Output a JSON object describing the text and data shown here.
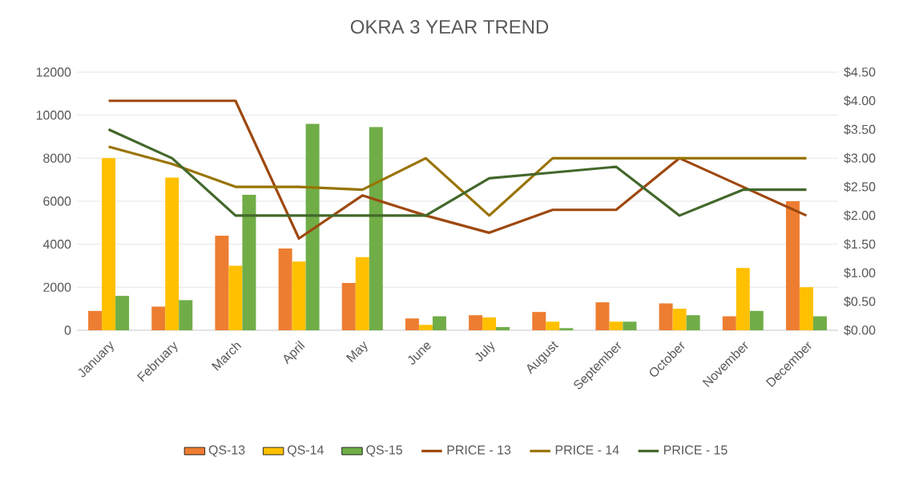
{
  "chart_data": {
    "type": "bar",
    "title": "OKRA 3 YEAR TREND",
    "categories": [
      "January",
      "February",
      "March",
      "April",
      "May",
      "June",
      "July",
      "August",
      "September",
      "October",
      "November",
      "December"
    ],
    "series": [
      {
        "name": "QS-13",
        "color": "#ed7d31",
        "values": [
          900,
          1100,
          4400,
          3800,
          2200,
          550,
          700,
          850,
          1300,
          1250,
          650,
          6000
        ]
      },
      {
        "name": "QS-14",
        "color": "#ffc000",
        "values": [
          8000,
          7100,
          3000,
          3200,
          3400,
          250,
          600,
          400,
          400,
          1000,
          2900,
          2000
        ]
      },
      {
        "name": "QS-15",
        "color": "#70ad47",
        "values": [
          1600,
          1400,
          6300,
          9600,
          9450,
          650,
          150,
          100,
          400,
          700,
          900,
          650
        ]
      },
      {
        "name": "PRICE - 13",
        "type": "line",
        "axis": "y2",
        "color": "#9e480e",
        "values": [
          4.0,
          4.0,
          4.0,
          1.6,
          2.35,
          2.0,
          1.7,
          2.1,
          2.1,
          3.0,
          2.5,
          2.0
        ]
      },
      {
        "name": "PRICE - 14",
        "type": "line",
        "axis": "y2",
        "color": "#997300",
        "values": [
          3.2,
          2.9,
          2.5,
          2.5,
          2.45,
          3.0,
          2.0,
          3.0,
          3.0,
          3.0,
          3.0,
          3.0
        ]
      },
      {
        "name": "PRICE - 15",
        "type": "line",
        "axis": "y2",
        "color": "#43682b",
        "values": [
          3.5,
          3.0,
          2.0,
          2.0,
          2.0,
          2.0,
          2.65,
          2.75,
          2.85,
          2.0,
          2.45,
          2.45
        ]
      }
    ],
    "ylim": [
      0,
      12000
    ],
    "yticks": [
      0,
      2000,
      4000,
      6000,
      8000,
      10000,
      12000
    ],
    "y2lim": [
      0,
      4.5
    ],
    "y2ticks": [
      {
        "value": 0,
        "label": "$0.00"
      },
      {
        "value": 0.5,
        "label": "$0.50"
      },
      {
        "value": 1,
        "label": "$1.00"
      },
      {
        "value": 1.5,
        "label": "$1.50"
      },
      {
        "value": 2,
        "label": "$2.00"
      },
      {
        "value": 2.5,
        "label": "$2.50"
      },
      {
        "value": 3,
        "label": "$3.00"
      },
      {
        "value": 3.5,
        "label": "$3.50"
      },
      {
        "value": 4,
        "label": "$4.00"
      },
      {
        "value": 4.5,
        "label": "$4.50"
      }
    ],
    "grid": "y",
    "legend": "bottom",
    "marker": "none",
    "line_style": "solid"
  }
}
